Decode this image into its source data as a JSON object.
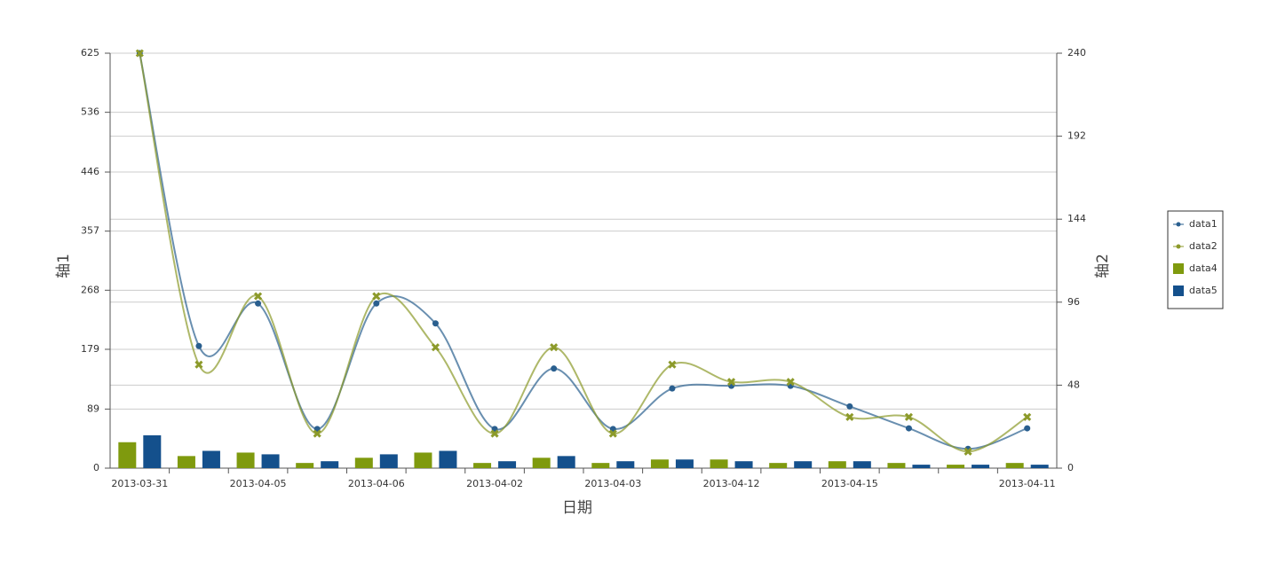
{
  "chart_data": {
    "type": "combo",
    "x_label": "日期",
    "y_label": "轴1",
    "y2_label": "轴2",
    "categories": [
      "2013-03-31",
      null,
      "2013-04-05",
      null,
      "2013-04-06",
      null,
      "2013-04-02",
      null,
      "2013-04-03",
      null,
      "2013-04-12",
      null,
      "2013-04-15",
      null,
      null,
      "2013-04-11"
    ],
    "ylim": [
      0,
      625
    ],
    "yticks": [
      0,
      89,
      179,
      268,
      357,
      446,
      536,
      625
    ],
    "y2lim": [
      0,
      240
    ],
    "y2ticks": [
      0,
      48,
      96,
      144,
      192,
      240
    ],
    "grid": true,
    "legend": "right",
    "series": [
      {
        "name": "data1",
        "type": "line",
        "marker": "circle",
        "color": "#2a5f8f",
        "values": [
          625,
          184,
          248,
          59,
          248,
          218,
          59,
          150,
          59,
          120,
          124,
          124,
          93,
          60,
          29,
          60
        ]
      },
      {
        "name": "data2",
        "type": "line",
        "marker": "cross",
        "color": "#8c9a2a",
        "values": [
          625,
          156,
          259,
          52,
          259,
          182,
          52,
          182,
          52,
          156,
          130,
          130,
          77,
          77,
          25,
          77
        ]
      },
      {
        "name": "data4",
        "type": "bar",
        "axis": "y2",
        "color": "#7f9a0e",
        "values": [
          15,
          7,
          9,
          3,
          6,
          9,
          3,
          6,
          3,
          5,
          5,
          3,
          4,
          3,
          2,
          3
        ]
      },
      {
        "name": "data5",
        "type": "bar",
        "axis": "y2",
        "color": "#14508c",
        "values": [
          19,
          10,
          8,
          4,
          8,
          10,
          4,
          7,
          4,
          5,
          4,
          4,
          4,
          2,
          2,
          2
        ]
      }
    ]
  }
}
